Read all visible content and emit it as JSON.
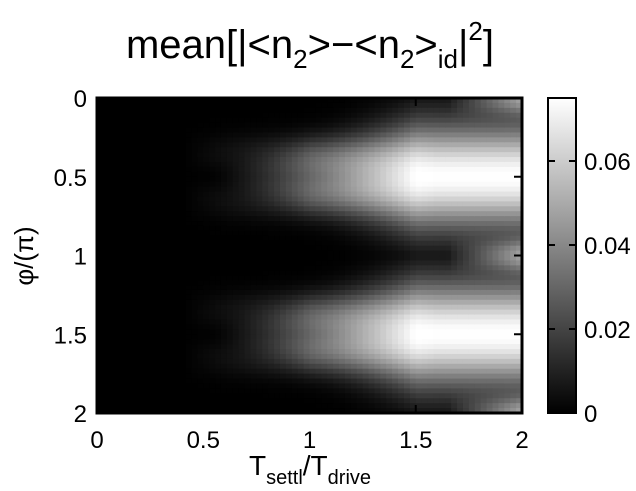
{
  "chart_data": {
    "type": "heatmap",
    "title": {
      "base": "mean[|<n",
      "sub1": "2",
      "mid": ">−<n",
      "sub2": "2",
      "after": ">",
      "sub3": "id",
      "close": "|",
      "sup": "2",
      "end": "]"
    },
    "xlabel": {
      "base1": "T",
      "sub1": "settl",
      "slash": "/T",
      "sub2": "drive"
    },
    "ylabel": "φ/(π)",
    "xlim": [
      0,
      2
    ],
    "ylim": [
      0,
      2
    ],
    "y_inverted": true,
    "xticks": [
      {
        "value": 0,
        "label": "0"
      },
      {
        "value": 0.5,
        "label": "0.5"
      },
      {
        "value": 1,
        "label": "1"
      },
      {
        "value": 1.5,
        "label": "1.5"
      },
      {
        "value": 2,
        "label": "2"
      }
    ],
    "yticks": [
      {
        "value": 0,
        "label": "0"
      },
      {
        "value": 0.5,
        "label": "0.5"
      },
      {
        "value": 1,
        "label": "1"
      },
      {
        "value": 1.5,
        "label": "1.5"
      },
      {
        "value": 2,
        "label": "2"
      }
    ],
    "colorbar": {
      "range": [
        0,
        0.075
      ],
      "ticks": [
        {
          "value": 0,
          "label": "0"
        },
        {
          "value": 0.02,
          "label": "0.02"
        },
        {
          "value": 0.04,
          "label": "0.04"
        },
        {
          "value": 0.06,
          "label": "0.06"
        }
      ],
      "colormap": "gray"
    },
    "grid": false
  }
}
